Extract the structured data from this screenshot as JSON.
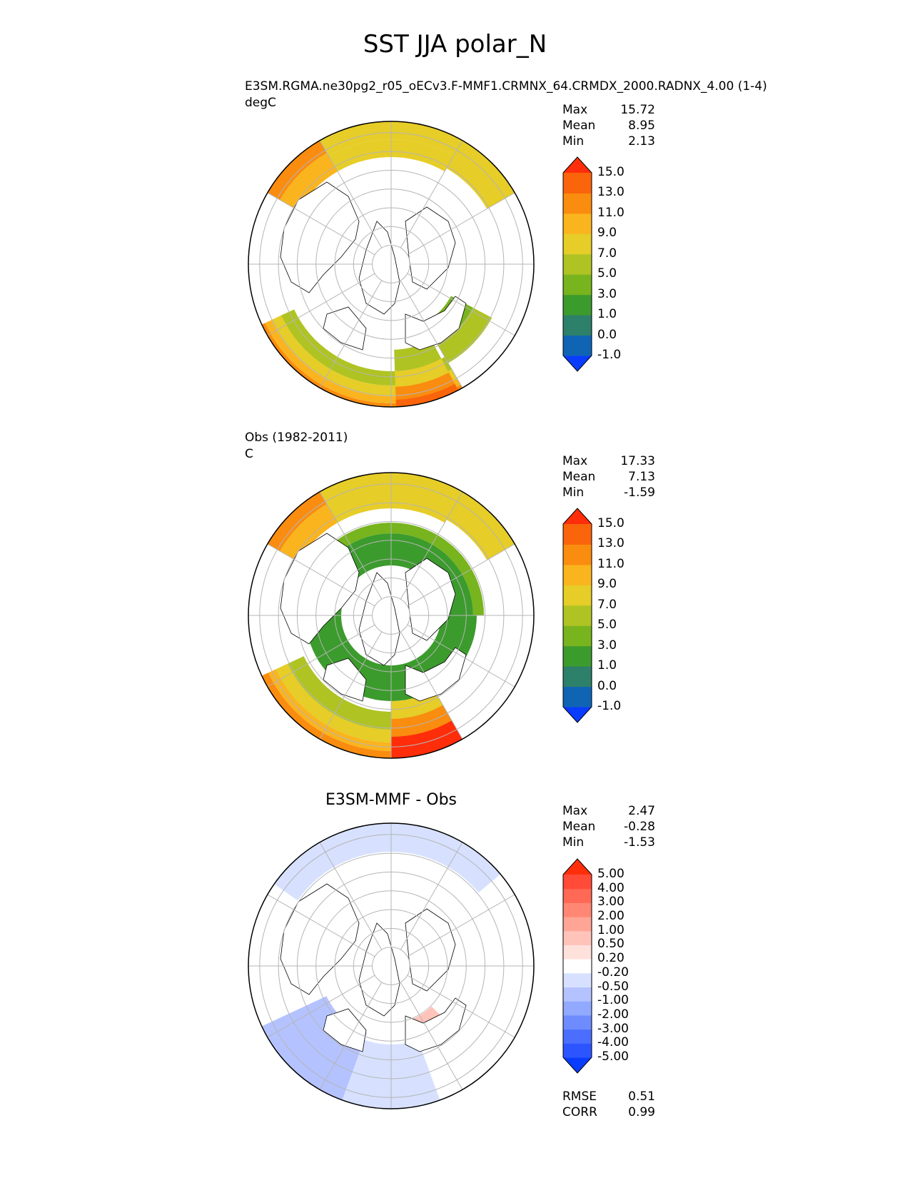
{
  "title": "SST JJA polar_N",
  "panels": [
    {
      "id": "test",
      "name_line": "E3SM.RGMA.ne30pg2_r05_oECv3.F-MMF1.CRMNX_64.CRMDX_2000.RADNX_4.00 (1-4)",
      "units": "degC",
      "title": "",
      "stats": [
        {
          "label": "Max",
          "value": "15.72"
        },
        {
          "label": "Mean",
          "value": "8.95"
        },
        {
          "label": "Min",
          "value": "2.13"
        }
      ],
      "colorbar": {
        "colors": [
          "#0a3cff",
          "#0f64b4",
          "#2d8069",
          "#3c9b2d",
          "#78b41e",
          "#afc323",
          "#e6cd28",
          "#fab41e",
          "#fa8c0f",
          "#fa640a",
          "#ff2d0a"
        ],
        "labels": [
          "-1.0",
          "0.0",
          "1.0",
          "3.0",
          "5.0",
          "7.0",
          "9.0",
          "11.0",
          "13.0",
          "15.0"
        ]
      }
    },
    {
      "id": "reference",
      "name_line": "Obs (1982-2011)",
      "units": "C",
      "title": "",
      "stats": [
        {
          "label": "Max",
          "value": "17.33"
        },
        {
          "label": "Mean",
          "value": "7.13"
        },
        {
          "label": "Min",
          "value": "-1.59"
        }
      ],
      "colorbar": {
        "colors": [
          "#0a3cff",
          "#0f64b4",
          "#2d8069",
          "#3c9b2d",
          "#78b41e",
          "#afc323",
          "#e6cd28",
          "#fab41e",
          "#fa8c0f",
          "#fa640a",
          "#ff2d0a"
        ],
        "labels": [
          "-1.0",
          "0.0",
          "1.0",
          "3.0",
          "5.0",
          "7.0",
          "9.0",
          "11.0",
          "13.0",
          "15.0"
        ]
      }
    },
    {
      "id": "difference",
      "name_line": "",
      "units": "",
      "title": "E3SM-MMF - Obs",
      "stats": [
        {
          "label": "Max",
          "value": "2.47"
        },
        {
          "label": "Mean",
          "value": "-0.28"
        },
        {
          "label": "Min",
          "value": "-1.53"
        }
      ],
      "colorbar": {
        "colors": [
          "#0a3cff",
          "#2d55ff",
          "#4b6eff",
          "#6e8cff",
          "#91aaff",
          "#b4c3ff",
          "#d7e1ff",
          "#ffffff",
          "#ffe1dc",
          "#ffc3b9",
          "#ffa596",
          "#ff8773",
          "#ff6955",
          "#ff4b37",
          "#ff2d0a"
        ],
        "labels": [
          "-5.00",
          "-4.00",
          "-3.00",
          "-2.00",
          "-1.00",
          "-0.50",
          "-0.20",
          "0.20",
          "0.50",
          "1.00",
          "2.00",
          "3.00",
          "4.00",
          "5.00"
        ]
      },
      "metrics": [
        {
          "label": "RMSE",
          "value": "0.51"
        },
        {
          "label": "CORR",
          "value": "0.99"
        }
      ]
    }
  ],
  "chart_data": [
    {
      "type": "heatmap",
      "projection": "north polar stereographic",
      "title": "E3SM.RGMA.ne30pg2_r05_oECv3.F-MMF1.CRMNX_64.CRMDX_2000.RADNX_4.00 (1-4)",
      "units": "degC",
      "max": 15.72,
      "mean": 8.95,
      "min": 2.13,
      "levels": [
        -1.0,
        0.0,
        1.0,
        3.0,
        5.0,
        7.0,
        9.0,
        11.0,
        13.0,
        15.0
      ]
    },
    {
      "type": "heatmap",
      "projection": "north polar stereographic",
      "title": "Obs (1982-2011)",
      "units": "C",
      "max": 17.33,
      "mean": 7.13,
      "min": -1.59,
      "levels": [
        -1.0,
        0.0,
        1.0,
        3.0,
        5.0,
        7.0,
        9.0,
        11.0,
        13.0,
        15.0
      ]
    },
    {
      "type": "heatmap",
      "projection": "north polar stereographic",
      "title": "E3SM-MMF - Obs",
      "max": 2.47,
      "mean": -0.28,
      "min": -1.53,
      "rmse": 0.51,
      "corr": 0.99,
      "levels": [
        -5.0,
        -4.0,
        -3.0,
        -2.0,
        -1.0,
        -0.5,
        -0.2,
        0.2,
        0.5,
        1.0,
        2.0,
        3.0,
        4.0,
        5.0
      ]
    }
  ]
}
